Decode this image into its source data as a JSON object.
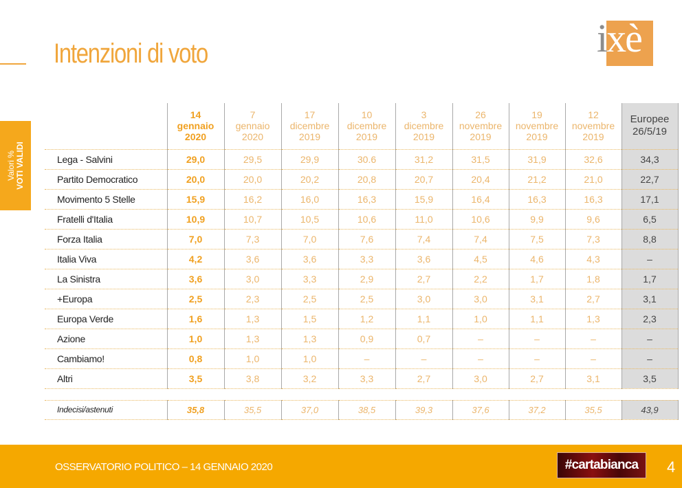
{
  "title": "Intenzioni di voto",
  "logo": {
    "text_i": "i",
    "text_rest": "xè"
  },
  "sidetab": {
    "line1": "Valori %",
    "line2": "VOTI VALIDI"
  },
  "columns": [
    [
      "14",
      "gennaio",
      "2020"
    ],
    [
      "7",
      "gennaio",
      "2020"
    ],
    [
      "17",
      "dicembre",
      "2019"
    ],
    [
      "10",
      "dicembre",
      "2019"
    ],
    [
      "3",
      "dicembre",
      "2019"
    ],
    [
      "26",
      "novembre",
      "2019"
    ],
    [
      "19",
      "novembre",
      "2019"
    ],
    [
      "12",
      "novembre",
      "2019"
    ],
    [
      "Europee",
      "26/5/19"
    ]
  ],
  "rows": [
    {
      "label": "Lega - Salvini",
      "values": [
        "29,0",
        "29,5",
        "29,9",
        "30.6",
        "31,2",
        "31,5",
        "31,9",
        "32,6",
        "34,3"
      ]
    },
    {
      "label": "Partito Democratico",
      "values": [
        "20,0",
        "20,0",
        "20,2",
        "20,8",
        "20,7",
        "20,4",
        "21,2",
        "21,0",
        "22,7"
      ]
    },
    {
      "label": "Movimento 5 Stelle",
      "values": [
        "15,9",
        "16,2",
        "16,0",
        "16,3",
        "15,9",
        "16,4",
        "16,3",
        "16,3",
        "17,1"
      ]
    },
    {
      "label": "Fratelli d'Italia",
      "values": [
        "10,9",
        "10,7",
        "10,5",
        "10,6",
        "11,0",
        "10,6",
        "9,9",
        "9,6",
        "6,5"
      ]
    },
    {
      "label": "Forza Italia",
      "values": [
        "7,0",
        "7,3",
        "7,0",
        "7,6",
        "7,4",
        "7,4",
        "7,5",
        "7,3",
        "8,8"
      ]
    },
    {
      "label": "Italia Viva",
      "values": [
        "4,2",
        "3,6",
        "3,6",
        "3,3",
        "3,6",
        "4,5",
        "4,6",
        "4,3",
        "–"
      ]
    },
    {
      "label": "La Sinistra",
      "values": [
        "3,6",
        "3,0",
        "3,3",
        "2,9",
        "2,7",
        "2,2",
        "1,7",
        "1,8",
        "1,7"
      ]
    },
    {
      "label": "+Europa",
      "values": [
        "2,5",
        "2,3",
        "2,5",
        "2,5",
        "3,0",
        "3,0",
        "3,1",
        "2,7",
        "3,1"
      ]
    },
    {
      "label": "Europa Verde",
      "values": [
        "1,6",
        "1,3",
        "1,5",
        "1,2",
        "1,1",
        "1,0",
        "1,1",
        "1,3",
        "2,3"
      ]
    },
    {
      "label": "Azione",
      "values": [
        "1,0",
        "1,3",
        "1,3",
        "0,9",
        "0,7",
        "–",
        "–",
        "–",
        "–"
      ]
    },
    {
      "label": "Cambiamo!",
      "values": [
        "0,8",
        "1,0",
        "1,0",
        "–",
        "–",
        "–",
        "–",
        "–",
        "–"
      ]
    },
    {
      "label": "Altri",
      "values": [
        "3,5",
        "3,8",
        "3,2",
        "3,3",
        "2,7",
        "3,0",
        "2,7",
        "3,1",
        "3,5"
      ]
    }
  ],
  "undecided": {
    "label": "Indecisi/astenuti",
    "values": [
      "35,8",
      "35,5",
      "37,0",
      "38,5",
      "39,3",
      "37,6",
      "37,2",
      "35,5",
      "43,9"
    ]
  },
  "footer": {
    "text": "OSSERVATORIO POLITICO – 14 GENNAIO 2020",
    "brand": "#cartabianca",
    "page": "4"
  }
}
